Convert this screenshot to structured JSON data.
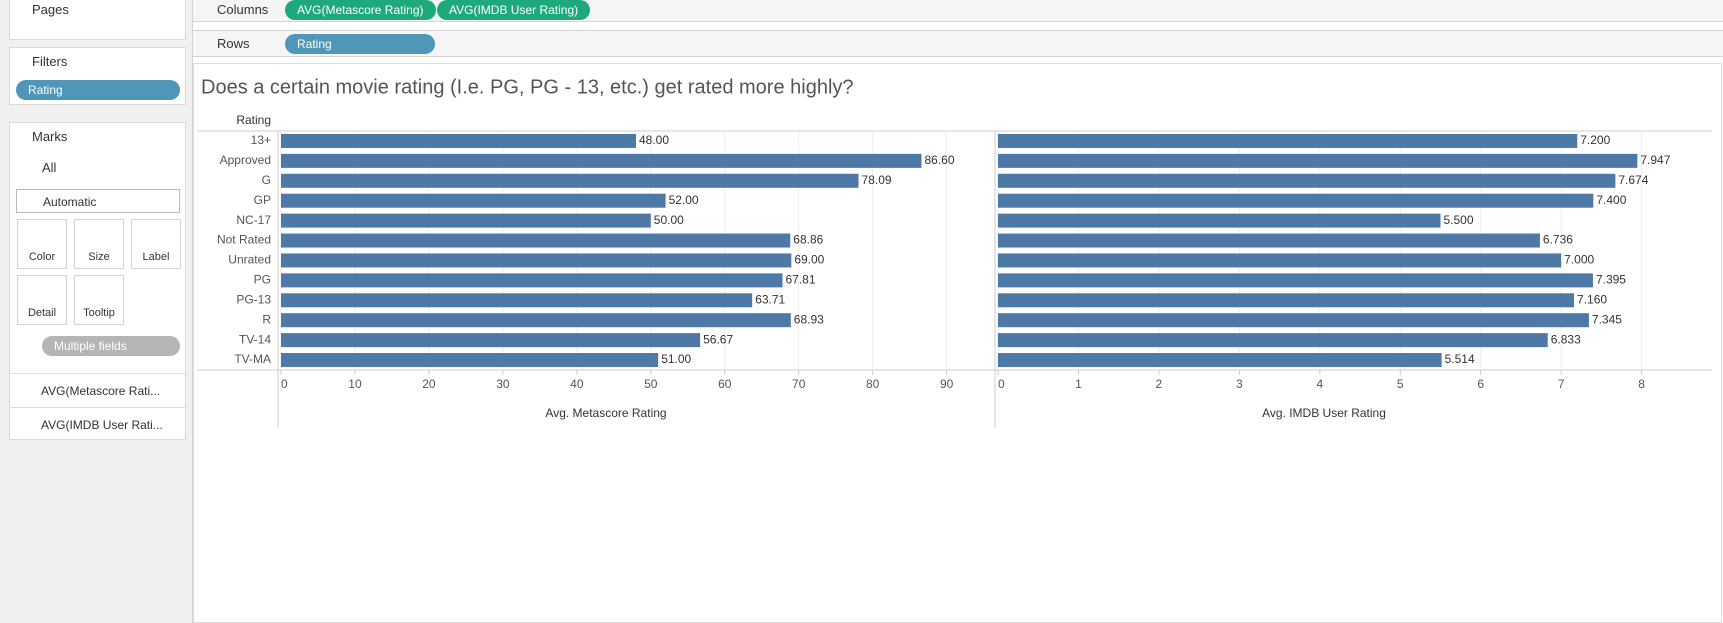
{
  "sidebar": {
    "pages": "Pages",
    "filters": "Filters",
    "filter_pill": "Rating",
    "marks": "Marks",
    "all": "All",
    "mark_type": "Automatic",
    "buttons": [
      "Color",
      "Size",
      "Label",
      "Detail",
      "Tooltip"
    ],
    "label_pill": "Multiple fields",
    "measures": [
      "AVG(Metascore Rati...",
      "AVG(IMDB User Rati..."
    ]
  },
  "shelves": {
    "columns_label": "Columns",
    "columns": [
      "AVG(Metascore Rating)",
      "AVG(IMDB User Rating)"
    ],
    "rows_label": "Rows",
    "rows": [
      "Rating"
    ]
  },
  "chart_data": {
    "type": "bar",
    "title": "Does a certain movie rating (I.e. PG, PG - 13, etc.) get rated more highly?",
    "row_header": "Rating",
    "color": "#4e79a7",
    "grid": true,
    "categories": [
      "13+",
      "Approved",
      "G",
      "GP",
      "NC-17",
      "Not Rated",
      "Unrated",
      "PG",
      "PG-13",
      "R",
      "TV-14",
      "TV-MA"
    ],
    "panels": [
      {
        "xlabel": "Avg. Metascore Rating",
        "xlim": [
          0,
          96
        ],
        "xticks": [
          0,
          10,
          20,
          30,
          40,
          50,
          60,
          70,
          80,
          90
        ],
        "values": [
          48,
          86.6,
          78.09,
          52,
          50,
          68.86,
          69,
          67.81,
          63.71,
          68.93,
          56.67,
          51
        ],
        "value_labels": [
          "48.00",
          "86.60",
          "78.09",
          "52.00",
          "50.00",
          "68.86",
          "69.00",
          "67.81",
          "63.71",
          "68.93",
          "56.67",
          "51.00"
        ]
      },
      {
        "xlabel": "Avg. IMDB User Rating",
        "xlim": [
          0,
          8.85
        ],
        "xticks": [
          0,
          1,
          2,
          3,
          4,
          5,
          6,
          7,
          8
        ],
        "values": [
          7.2,
          7.947,
          7.674,
          7.4,
          5.5,
          6.736,
          7.0,
          7.395,
          7.16,
          7.345,
          6.833,
          5.514
        ],
        "value_labels": [
          "7.200",
          "7.947",
          "7.674",
          "7.400",
          "5.500",
          "6.736",
          "7.000",
          "7.395",
          "7.160",
          "7.345",
          "6.833",
          "5.514"
        ]
      }
    ]
  }
}
